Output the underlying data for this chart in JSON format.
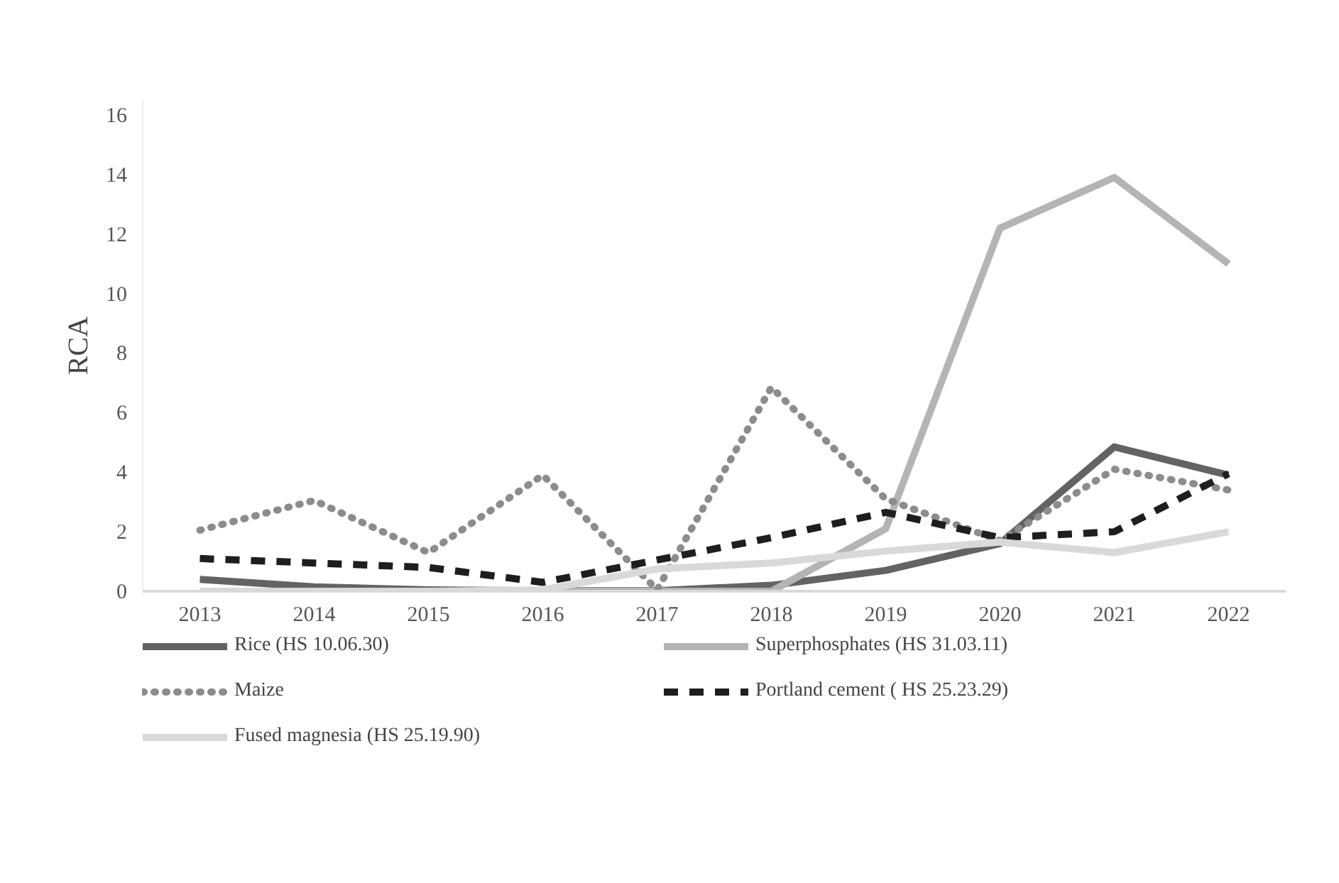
{
  "chart_data": {
    "type": "line",
    "ylabel": "RCA",
    "categories": [
      "2013",
      "2014",
      "2015",
      "2016",
      "2017",
      "2018",
      "2019",
      "2020",
      "2021",
      "2022"
    ],
    "series": [
      {
        "name": "Rice (HS 10.06.30)",
        "color": "#636363",
        "line_style": "solid",
        "values": [
          0.4,
          0.15,
          0.05,
          0.02,
          0.02,
          0.2,
          0.7,
          1.6,
          4.85,
          3.9
        ]
      },
      {
        "name": "Superphosphates (HS 31.03.11)",
        "color": "#b4b4b4",
        "line_style": "solid",
        "values": [
          0,
          0,
          0,
          0,
          0,
          0,
          2.1,
          12.2,
          13.9,
          11.0
        ]
      },
      {
        "name": "Maize",
        "color": "#8c8c8c",
        "line_style": "dotted",
        "values": [
          2.05,
          3.05,
          1.3,
          3.9,
          0.05,
          6.85,
          3.1,
          1.7,
          4.1,
          3.4
        ]
      },
      {
        "name": "Portland cement ( HS 25.23.29)",
        "color": "#1e1e1e",
        "line_style": "dashed",
        "values": [
          1.1,
          0.95,
          0.8,
          0.3,
          1.05,
          1.8,
          2.65,
          1.8,
          2.0,
          3.95
        ]
      },
      {
        "name": "Fused magnesia (HS 25.19.90)",
        "color": "#d9d9d9",
        "line_style": "solid",
        "values": [
          0,
          0,
          0,
          0.05,
          0.75,
          0.95,
          1.35,
          1.65,
          1.3,
          2.0
        ]
      }
    ],
    "ylim": [
      0,
      16.5
    ],
    "yticks": [
      0,
      2,
      4,
      6,
      8,
      10,
      12,
      14,
      16
    ],
    "grid": false,
    "legend": "bottom"
  }
}
